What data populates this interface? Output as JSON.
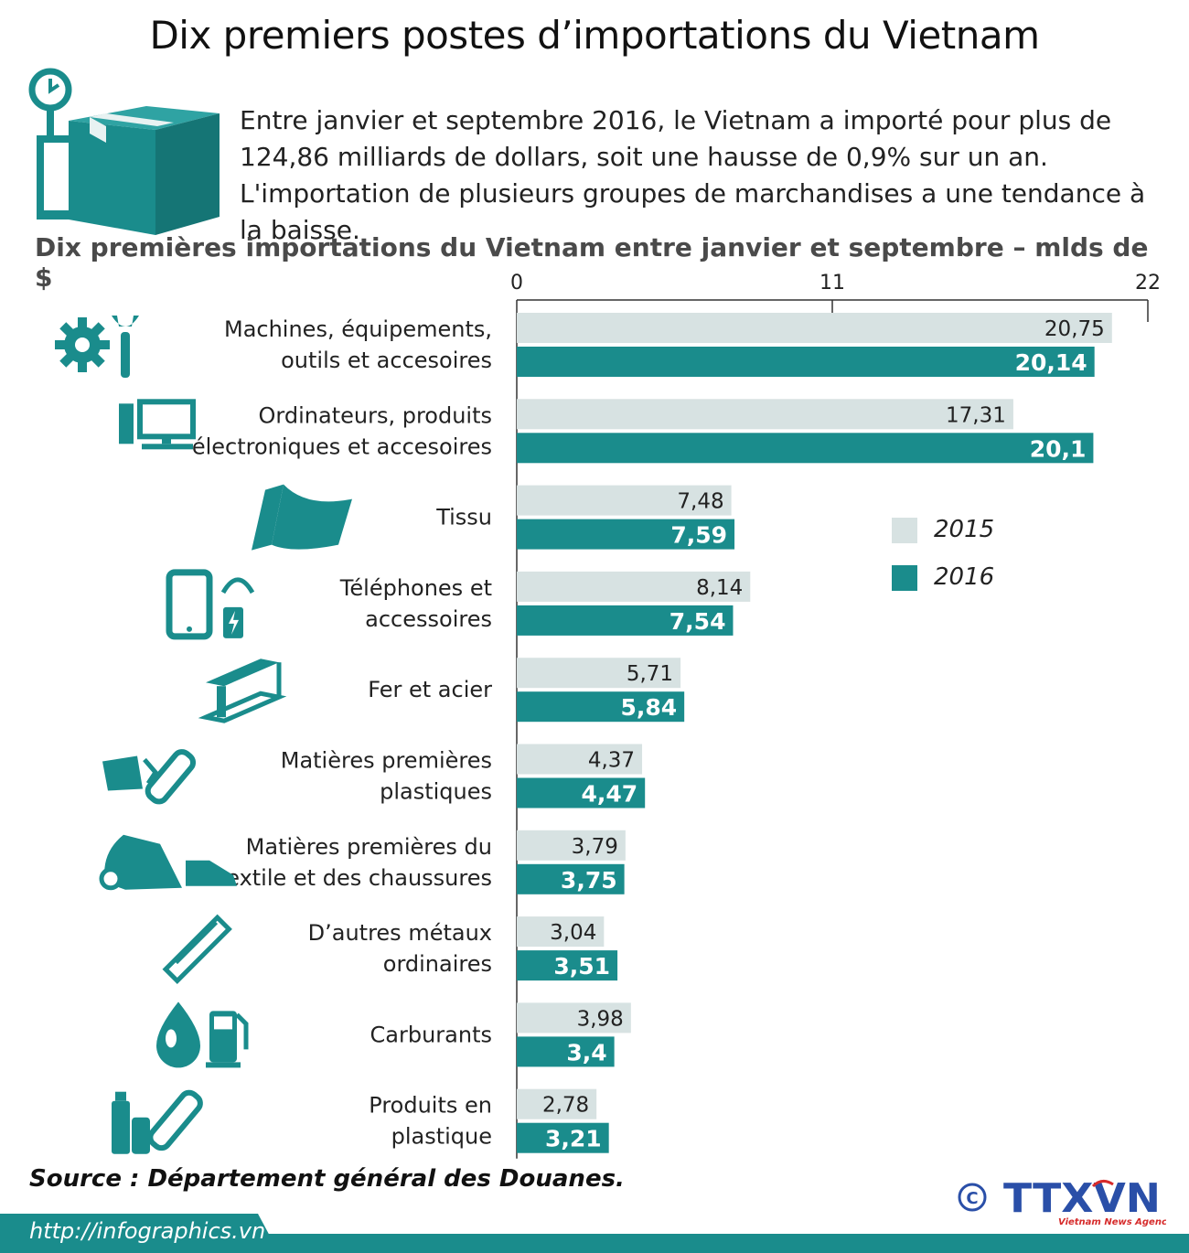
{
  "title": "Dix premiers postes d’importations du Vietnam",
  "intro": "Entre janvier et septembre 2016, le Vietnam a importé pour plus de 124,86 milliards de dollars, soit une hausse de 0,9% sur un an. L'importation de plusieurs groupes de marchandises a une tendance à la baisse.",
  "subtitle": "Dix premières importations du Vietnam entre janvier et septembre – mlds de $",
  "source": "Source : Département général des Douanes.",
  "footer_url": "http://infographics.vn",
  "logo": {
    "copyright": "©",
    "text": "TTXVN",
    "tagline": "Vietnam News Agency"
  },
  "colors": {
    "teal": "#1a8c8c",
    "light": "#d7e2e2",
    "logo_blue": "#2a4fa8",
    "logo_red": "#d62b2b"
  },
  "legend": [
    {
      "label": "2015",
      "color": "#d7e2e2"
    },
    {
      "label": "2016",
      "color": "#1a8c8c"
    }
  ],
  "chart_data": {
    "type": "bar",
    "orientation": "horizontal",
    "title": "Dix premières importations du Vietnam entre janvier et septembre – mlds de $",
    "unit": "mlds de $",
    "xlim": [
      0,
      22
    ],
    "ticks": [
      "0",
      "11",
      "22"
    ],
    "categories": [
      {
        "lines": [
          "Machines, équipements,",
          "outils et accesoires"
        ],
        "icon": "gear-wrench-icon"
      },
      {
        "lines": [
          "Ordinateurs, produits",
          "électroniques et accesoires"
        ],
        "icon": "computer-icon"
      },
      {
        "lines": [
          "Tissu"
        ],
        "icon": "fabric-roll-icon"
      },
      {
        "lines": [
          "Téléphones et",
          "accessoires"
        ],
        "icon": "phone-headphones-icon"
      },
      {
        "lines": [
          "Fer et acier"
        ],
        "icon": "steel-beam-icon"
      },
      {
        "lines": [
          "Matières premières",
          "plastiques"
        ],
        "icon": "plastic-materials-icon"
      },
      {
        "lines": [
          "Matières premières du",
          "textile et des chaussures"
        ],
        "icon": "textile-shoe-icon"
      },
      {
        "lines": [
          "D’autres métaux",
          "ordinaires"
        ],
        "icon": "metal-bar-icon"
      },
      {
        "lines": [
          "Carburants"
        ],
        "icon": "fuel-icon"
      },
      {
        "lines": [
          "Produits en",
          "plastique"
        ],
        "icon": "plastic-bottles-icon"
      }
    ],
    "series": [
      {
        "name": "2015",
        "color": "#d7e2e2",
        "values": [
          20.75,
          17.31,
          7.48,
          8.14,
          5.71,
          4.37,
          3.79,
          3.04,
          3.98,
          2.78
        ],
        "labels": [
          "20,75",
          "17,31",
          "7,48",
          "8,14",
          "5,71",
          "4,37",
          "3,79",
          "3,04",
          "3,98",
          "2,78"
        ]
      },
      {
        "name": "2016",
        "color": "#1a8c8c",
        "values": [
          20.14,
          20.1,
          7.59,
          7.54,
          5.84,
          4.47,
          3.75,
          3.51,
          3.4,
          3.21
        ],
        "labels": [
          "20,14",
          "20,1",
          "7,59",
          "7,54",
          "5,84",
          "4,47",
          "3,75",
          "3,51",
          "3,4",
          "3,21"
        ]
      }
    ]
  }
}
